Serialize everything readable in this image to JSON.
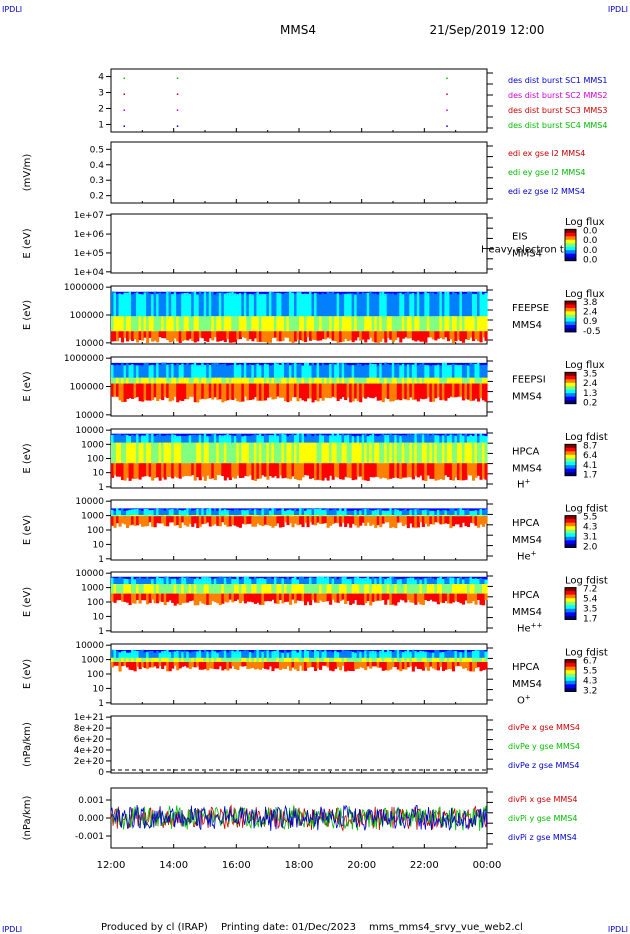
{
  "header": {
    "corner_label": "IPDLI",
    "spacecraft": "MMS4",
    "date_time": "21/Sep/2019 12:00"
  },
  "footer": {
    "produced_by": "Produced by cl (IRAP)",
    "printing_date": "Printing date: 01/Dec/2023",
    "script_name": "mms_mms4_srvy_vue_web2.cl"
  },
  "time_axis": {
    "tick_labels": [
      "12:00",
      "14:00",
      "16:00",
      "18:00",
      "20:00",
      "22:00",
      "00:00"
    ]
  },
  "colors": {
    "blue": "#0000cc",
    "magenta": "#cc00cc",
    "red": "#cc0000",
    "green": "#00bb00"
  },
  "colorbar_colors": [
    "#00007f",
    "#0000ff",
    "#0080ff",
    "#00ffff",
    "#80ff80",
    "#ffff00",
    "#ff8000",
    "#ff0000",
    "#7f0000"
  ],
  "chart_data": [
    {
      "type": "scatter",
      "panel": "mode",
      "yticks": [
        "4",
        "3",
        "2",
        "1"
      ],
      "ylim": [
        0.5,
        4.5
      ],
      "x_hours": [
        0.4,
        2.1,
        10.7
      ],
      "series": [
        {
          "name": "des dist burst SC1 MMS1",
          "color": "#0000cc",
          "y": 1
        },
        {
          "name": "des dist burst SC2 MMS2",
          "color": "#cc00cc",
          "y": 2
        },
        {
          "name": "des dist burst SC3 MMS3",
          "color": "#cc0000",
          "y": 3
        },
        {
          "name": "des dist burst SC4 MMS4",
          "color": "#00bb00",
          "y": 4
        }
      ]
    },
    {
      "type": "line",
      "panel": "edi",
      "ylabel": "(mV/m)",
      "yticks": [
        "0.5",
        "0.4",
        "0.3",
        "0.2"
      ],
      "ylim": [
        0.13,
        0.55
      ],
      "series": [
        {
          "name": "edi ex gse l2 MMS4",
          "color": "#cc0000"
        },
        {
          "name": "edi ey gse l2 MMS4",
          "color": "#00bb00"
        },
        {
          "name": "edi ez gse l2 MMS4",
          "color": "#0000cc"
        }
      ]
    },
    {
      "type": "heatmap",
      "panel": "eis",
      "ylabel": "E (eV)",
      "yticks": [
        "1e+07",
        "1e+06",
        "1e+05",
        "1e+04"
      ],
      "instrument": [
        "EIS",
        "MMS4"
      ],
      "overlay_text": "Heavy electron to",
      "colorbar_title": "Log flux",
      "colorbar_ticks": [
        "0.0",
        "0.0",
        "0.0",
        "0.0"
      ],
      "spectrum": null
    },
    {
      "type": "heatmap",
      "panel": "feepse",
      "ylabel": "E (eV)",
      "yticks": [
        "1000000",
        "100000",
        "10000"
      ],
      "instrument": [
        "FEEPSE",
        "MMS4"
      ],
      "colorbar_title": "Log flux",
      "colorbar_ticks": [
        "3.8",
        "2.4",
        "0.9",
        "-0.5"
      ],
      "spectrum": "feepse"
    },
    {
      "type": "heatmap",
      "panel": "feepsi",
      "ylabel": "E (eV)",
      "yticks": [
        "1000000",
        "100000",
        "10000"
      ],
      "instrument": [
        "FEEPSI",
        "MMS4"
      ],
      "colorbar_title": "Log flux",
      "colorbar_ticks": [
        "3.5",
        "2.4",
        "1.3",
        "0.2"
      ],
      "spectrum": "feepsi"
    },
    {
      "type": "heatmap",
      "panel": "hpca_h",
      "ylabel": "E (eV)",
      "yticks": [
        "10000",
        "1000",
        "100",
        "10",
        "1"
      ],
      "instrument": [
        "HPCA",
        "MMS4"
      ],
      "species": "H",
      "species_sup": "+",
      "colorbar_title": "Log fdist",
      "colorbar_ticks": [
        "8.7",
        "6.4",
        "4.1",
        "1.7"
      ],
      "spectrum": "hpca_h"
    },
    {
      "type": "heatmap",
      "panel": "hpca_he",
      "ylabel": "E (eV)",
      "yticks": [
        "10000",
        "1000",
        "100",
        "10",
        "1"
      ],
      "instrument": [
        "HPCA",
        "MMS4"
      ],
      "species": "He",
      "species_sup": "+",
      "colorbar_title": "Log fdist",
      "colorbar_ticks": [
        "5.5",
        "4.3",
        "3.1",
        "2.0"
      ],
      "spectrum": "hpca_he"
    },
    {
      "type": "heatmap",
      "panel": "hpca_hepp",
      "ylabel": "E (eV)",
      "yticks": [
        "10000",
        "1000",
        "100",
        "10",
        "1"
      ],
      "instrument": [
        "HPCA",
        "MMS4"
      ],
      "species": "He",
      "species_sup": "++",
      "colorbar_title": "Log fdist",
      "colorbar_ticks": [
        "7.2",
        "5.4",
        "3.5",
        "1.7"
      ],
      "spectrum": "hpca_hepp"
    },
    {
      "type": "heatmap",
      "panel": "hpca_o",
      "ylabel": "E (eV)",
      "yticks": [
        "10000",
        "1000",
        "100",
        "10",
        "1"
      ],
      "instrument": [
        "HPCA",
        "MMS4"
      ],
      "species": "O",
      "species_sup": "+",
      "colorbar_title": "Log fdist",
      "colorbar_ticks": [
        "6.7",
        "5.5",
        "4.3",
        "3.2"
      ],
      "spectrum": "hpca_o"
    },
    {
      "type": "line",
      "panel": "divpe",
      "ylabel": "(nPa/km)",
      "yticks": [
        "1e+21",
        "8e+20",
        "6e+20",
        "4e+20",
        "2e+20",
        "0"
      ],
      "ylim": [
        -1e+19,
        1.07e+21
      ],
      "zero_line": 0,
      "series": [
        {
          "name": "divPe x gse MMS4",
          "color": "#cc0000"
        },
        {
          "name": "divPe y gse MMS4",
          "color": "#00bb00"
        },
        {
          "name": "divPe z gse MMS4",
          "color": "#0000cc"
        }
      ]
    },
    {
      "type": "line",
      "panel": "divpi",
      "ylabel": "(nPa/km)",
      "yticks": [
        "0.001",
        "0.000",
        "-0.001"
      ],
      "ylim": [
        -0.0016,
        0.0016
      ],
      "noise_amplitude": 0.0006,
      "series": [
        {
          "name": "divPi x gse MMS4",
          "color": "#cc0000"
        },
        {
          "name": "divPi y gse MMS4",
          "color": "#00bb00"
        },
        {
          "name": "divPi z gse MMS4",
          "color": "#0000cc"
        }
      ]
    }
  ]
}
